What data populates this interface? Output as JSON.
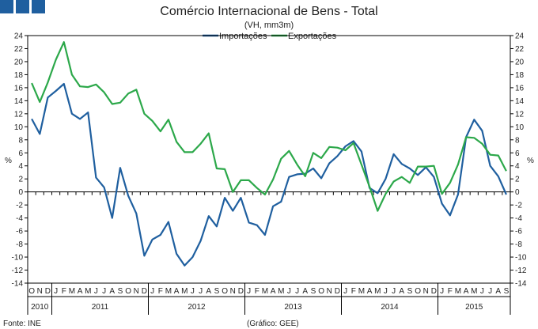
{
  "header": {
    "logo_squares": 3
  },
  "footer": {
    "source": "Fonte: INE",
    "credit": "(Gráfico: GEE)"
  },
  "chart_data": {
    "type": "line",
    "title": "Comércio Internacional de Bens - Total",
    "subtitle": "(VH, mm3m)",
    "ylabel": "%",
    "ylim": [
      -14,
      24
    ],
    "yticks": [
      -14,
      -12,
      -10,
      -8,
      -6,
      -4,
      -2,
      0,
      2,
      4,
      6,
      8,
      10,
      12,
      14,
      16,
      18,
      20,
      22,
      24
    ],
    "grid": false,
    "legend": "top-center",
    "month_labels": [
      "O",
      "N",
      "D",
      "J",
      "F",
      "M",
      "A",
      "M",
      "J",
      "J",
      "A",
      "S",
      "O",
      "N",
      "D",
      "J",
      "F",
      "M",
      "A",
      "M",
      "J",
      "J",
      "A",
      "S",
      "O",
      "N",
      "D",
      "J",
      "F",
      "M",
      "A",
      "M",
      "J",
      "J",
      "A",
      "S",
      "O",
      "N",
      "D",
      "J",
      "F",
      "M",
      "A",
      "M",
      "J",
      "J",
      "A",
      "S",
      "O",
      "N",
      "D",
      "J",
      "F",
      "M",
      "A",
      "M",
      "J",
      "J",
      "A",
      "S"
    ],
    "years": [
      {
        "label": "2010",
        "months": 3
      },
      {
        "label": "2011",
        "months": 12
      },
      {
        "label": "2012",
        "months": 12
      },
      {
        "label": "2013",
        "months": 12
      },
      {
        "label": "2014",
        "months": 12
      },
      {
        "label": "2015",
        "months": 9
      }
    ],
    "series": [
      {
        "name": "Importações",
        "color": "#1f5f9f",
        "values": [
          11.2,
          8.9,
          14.5,
          15.5,
          16.6,
          12.0,
          11.2,
          12.2,
          2.2,
          0.7,
          -4.0,
          3.7,
          -0.6,
          -3.3,
          -9.8,
          -7.3,
          -6.6,
          -4.6,
          -9.5,
          -11.3,
          -10.0,
          -7.5,
          -3.7,
          -5.3,
          -0.9,
          -2.9,
          -0.9,
          -4.7,
          -5.1,
          -6.6,
          -2.2,
          -1.5,
          2.3,
          2.7,
          2.8,
          3.6,
          2.1,
          4.4,
          5.5,
          7.0,
          7.8,
          6.2,
          0.6,
          -0.2,
          2.0,
          5.8,
          4.3,
          3.6,
          2.6,
          3.8,
          2.3,
          -1.8,
          -3.6,
          -0.4,
          8.4,
          11.1,
          9.4,
          4.0,
          2.4,
          -0.4
        ]
      },
      {
        "name": "Exportações",
        "color": "#2ca84a",
        "values": [
          16.7,
          13.8,
          16.8,
          20.3,
          23.0,
          18.0,
          16.2,
          16.1,
          16.5,
          15.3,
          13.5,
          13.7,
          15.1,
          15.7,
          12.0,
          10.9,
          9.3,
          11.1,
          7.7,
          6.1,
          6.1,
          7.4,
          9.0,
          3.6,
          3.5,
          0.0,
          1.8,
          1.8,
          0.6,
          -0.4,
          1.9,
          5.1,
          6.3,
          4.2,
          2.4,
          6.0,
          5.2,
          6.9,
          6.8,
          6.4,
          7.5,
          4.2,
          0.8,
          -2.9,
          -0.3,
          1.6,
          2.3,
          1.4,
          3.9,
          3.9,
          4.0,
          -0.3,
          1.4,
          4.2,
          8.4,
          8.3,
          7.4,
          5.7,
          5.6,
          3.2
        ]
      }
    ]
  }
}
